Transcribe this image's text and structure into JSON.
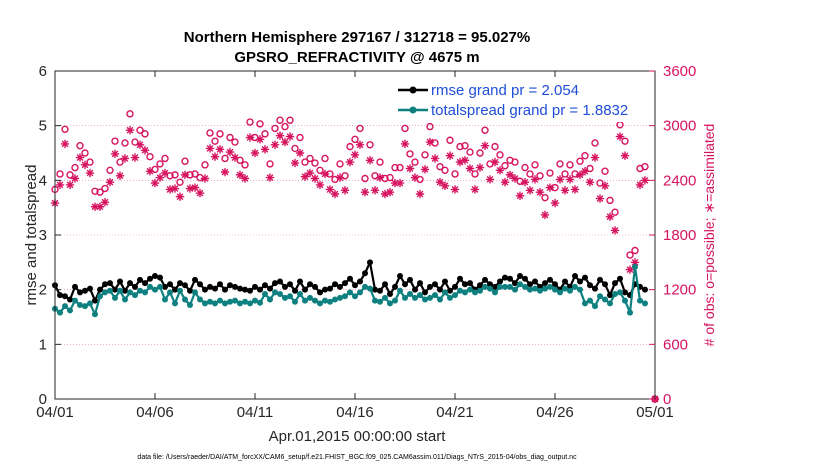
{
  "chart_data": {
    "type": "line",
    "title": "Northern Hemisphere 297167 / 312718 = 95.027%",
    "subtitle": "GPSRO_REFRACTIVITY @ 4675 m",
    "xlabel": "Apr.01,2015 00:00:00 start",
    "ylabel": "rmse and totalspread",
    "ylabel_right": "# of obs: o=possible; ∗=assimilated",
    "footer": "data file: /Users/raeder/DAI/ATM_forcXX/CAM6_setup/f.e21.FHIST_BGC.f09_025.CAM6assim.011/Diags_NTrS_2015-04/obs_diag_output.nc",
    "xlim": [
      0,
      30
    ],
    "ylim": [
      0,
      6
    ],
    "ylim_right": [
      0,
      3600
    ],
    "x_tick_labels": [
      "04/01",
      "04/06",
      "04/11",
      "04/16",
      "04/21",
      "04/26",
      "05/01"
    ],
    "y_tick_labels": [
      "0",
      "1",
      "2",
      "3",
      "4",
      "5",
      "6"
    ],
    "y_right_tick_labels": [
      "0",
      "600",
      "1200",
      "1800",
      "2400",
      "3000",
      "3600"
    ],
    "colors": {
      "rmse": "#000000",
      "totalspread": "#0e8080",
      "obs": "#d6135f",
      "legend_text": "#1f4fd8"
    },
    "legend": {
      "position": "top-right",
      "entries": [
        "rmse grand pr = 2.054",
        "totalspread grand pr = 1.8832"
      ]
    },
    "series": [
      {
        "name": "rmse",
        "axis": "left",
        "marker": "circle-line",
        "x": [
          0.0,
          0.25,
          0.5,
          0.75,
          1.0,
          1.25,
          1.5,
          1.75,
          2.0,
          2.25,
          2.5,
          2.75,
          3.0,
          3.25,
          3.5,
          3.75,
          4.0,
          4.25,
          4.5,
          4.75,
          5.0,
          5.25,
          5.5,
          5.75,
          6.0,
          6.25,
          6.5,
          6.75,
          7.0,
          7.25,
          7.5,
          7.75,
          8.0,
          8.25,
          8.5,
          8.75,
          9.0,
          9.25,
          9.5,
          9.75,
          10.0,
          10.25,
          10.5,
          10.75,
          11.0,
          11.25,
          11.5,
          11.75,
          12.0,
          12.25,
          12.5,
          12.75,
          13.0,
          13.25,
          13.5,
          13.75,
          14.0,
          14.25,
          14.5,
          14.75,
          15.0,
          15.25,
          15.5,
          15.75,
          16.0,
          16.25,
          16.5,
          16.75,
          17.0,
          17.25,
          17.5,
          17.75,
          18.0,
          18.25,
          18.5,
          18.75,
          19.0,
          19.25,
          19.5,
          19.75,
          20.0,
          20.25,
          20.5,
          20.75,
          21.0,
          21.25,
          21.5,
          21.75,
          22.0,
          22.25,
          22.5,
          22.75,
          23.0,
          23.25,
          23.5,
          23.75,
          24.0,
          24.25,
          24.5,
          24.75,
          25.0,
          25.25,
          25.5,
          25.75,
          26.0,
          26.25,
          26.5,
          26.75,
          27.0,
          27.25,
          27.5,
          27.75,
          28.0,
          28.25,
          28.5,
          28.75,
          29.0,
          29.25,
          29.5
        ],
        "values": [
          2.08,
          1.9,
          1.88,
          1.82,
          2.05,
          1.95,
          1.98,
          2.02,
          1.8,
          2.0,
          2.1,
          2.12,
          2.0,
          2.15,
          1.98,
          2.12,
          2.05,
          2.18,
          2.12,
          2.2,
          2.25,
          2.22,
          2.05,
          2.1,
          2.0,
          2.12,
          2.08,
          1.98,
          2.18,
          2.1,
          2.0,
          2.05,
          2.02,
          2.1,
          2.0,
          2.08,
          2.05,
          2.02,
          2.0,
          1.98,
          2.05,
          2.0,
          2.08,
          2.02,
          2.12,
          2.15,
          2.05,
          2.1,
          1.98,
          2.15,
          2.0,
          2.1,
          2.05,
          1.95,
          2.0,
          2.02,
          2.1,
          2.05,
          2.12,
          2.2,
          2.08,
          2.15,
          2.3,
          2.5,
          2.0,
          1.98,
          2.1,
          1.92,
          2.05,
          2.25,
          2.1,
          2.18,
          2.0,
          2.12,
          1.95,
          2.05,
          2.1,
          2.0,
          2.15,
          1.98,
          2.05,
          2.2,
          2.1,
          2.12,
          2.0,
          2.08,
          2.18,
          2.1,
          2.05,
          2.15,
          2.22,
          2.2,
          2.12,
          2.25,
          2.2,
          2.1,
          2.15,
          2.05,
          2.12,
          2.18,
          2.1,
          2.0,
          2.15,
          2.05,
          2.25,
          2.15,
          2.22,
          2.08,
          2.02,
          2.18,
          2.1,
          1.9,
          2.12,
          2.2,
          1.95,
          1.9,
          2.1,
          2.05,
          2.0
        ],
        "y_tick_count_note": "values in data units"
      },
      {
        "name": "totalspread",
        "axis": "left",
        "marker": "circle-line",
        "x": [
          0.0,
          0.25,
          0.5,
          0.75,
          1.0,
          1.25,
          1.5,
          1.75,
          2.0,
          2.25,
          2.5,
          2.75,
          3.0,
          3.25,
          3.5,
          3.75,
          4.0,
          4.25,
          4.5,
          4.75,
          5.0,
          5.25,
          5.5,
          5.75,
          6.0,
          6.25,
          6.5,
          6.75,
          7.0,
          7.25,
          7.5,
          7.75,
          8.0,
          8.25,
          8.5,
          8.75,
          9.0,
          9.25,
          9.5,
          9.75,
          10.0,
          10.25,
          10.5,
          10.75,
          11.0,
          11.25,
          11.5,
          11.75,
          12.0,
          12.25,
          12.5,
          12.75,
          13.0,
          13.25,
          13.5,
          13.75,
          14.0,
          14.25,
          14.5,
          14.75,
          15.0,
          15.25,
          15.5,
          15.75,
          16.0,
          16.25,
          16.5,
          16.75,
          17.0,
          17.25,
          17.5,
          17.75,
          18.0,
          18.25,
          18.5,
          18.75,
          19.0,
          19.25,
          19.5,
          19.75,
          20.0,
          20.25,
          20.5,
          20.75,
          21.0,
          21.25,
          21.5,
          21.75,
          22.0,
          22.25,
          22.5,
          22.75,
          23.0,
          23.25,
          23.5,
          23.75,
          24.0,
          24.25,
          24.5,
          24.75,
          25.0,
          25.25,
          25.5,
          25.75,
          26.0,
          26.25,
          26.5,
          26.75,
          27.0,
          27.25,
          27.5,
          27.75,
          28.0,
          28.25,
          28.5,
          28.75,
          29.0,
          29.25,
          29.5
        ],
        "values": [
          1.65,
          1.58,
          1.7,
          1.62,
          1.8,
          1.72,
          1.7,
          1.75,
          1.55,
          1.88,
          1.95,
          1.98,
          1.85,
          1.98,
          1.82,
          1.95,
          1.9,
          1.98,
          1.95,
          2.05,
          2.0,
          2.05,
          1.82,
          1.95,
          1.75,
          1.98,
          1.82,
          1.72,
          1.95,
          1.82,
          1.75,
          1.78,
          1.75,
          1.8,
          1.75,
          1.78,
          1.8,
          1.75,
          1.78,
          1.75,
          1.8,
          1.76,
          1.92,
          1.82,
          1.95,
          1.92,
          1.85,
          1.88,
          1.78,
          1.92,
          1.8,
          1.85,
          1.8,
          1.75,
          1.8,
          1.78,
          1.82,
          1.85,
          1.88,
          1.95,
          1.88,
          1.95,
          2.05,
          2.02,
          1.8,
          1.78,
          1.85,
          1.75,
          1.8,
          1.98,
          1.85,
          1.92,
          1.85,
          1.9,
          1.82,
          1.85,
          1.9,
          1.82,
          1.95,
          1.85,
          1.9,
          1.98,
          1.95,
          2.0,
          1.95,
          1.98,
          2.05,
          2.02,
          1.95,
          2.05,
          2.05,
          2.05,
          2.0,
          2.1,
          2.05,
          2.0,
          2.02,
          1.98,
          2.02,
          2.05,
          2.0,
          1.95,
          2.02,
          1.98,
          2.05,
          2.0,
          1.75,
          1.8,
          1.7,
          1.88,
          1.82,
          1.75,
          1.92,
          1.95,
          1.8,
          1.58,
          2.42,
          1.8,
          1.75
        ]
      },
      {
        "name": "obs possible",
        "axis": "right",
        "marker": "circle-open",
        "x": [
          0.0,
          0.25,
          0.5,
          0.75,
          1.0,
          1.25,
          1.5,
          1.75,
          2.0,
          2.25,
          2.5,
          2.75,
          3.0,
          3.25,
          3.5,
          3.75,
          4.0,
          4.25,
          4.5,
          4.75,
          5.0,
          5.25,
          5.5,
          5.75,
          6.0,
          6.25,
          6.5,
          6.75,
          7.0,
          7.25,
          7.5,
          7.75,
          8.0,
          8.25,
          8.5,
          8.75,
          9.0,
          9.25,
          9.5,
          9.75,
          10.0,
          10.25,
          10.5,
          10.75,
          11.0,
          11.25,
          11.5,
          11.75,
          12.0,
          12.25,
          12.5,
          12.75,
          13.0,
          13.25,
          13.5,
          13.75,
          14.0,
          14.25,
          14.5,
          14.75,
          15.0,
          15.25,
          15.5,
          15.75,
          16.0,
          16.25,
          16.5,
          16.75,
          17.0,
          17.25,
          17.5,
          17.75,
          18.0,
          18.25,
          18.5,
          18.75,
          19.0,
          19.25,
          19.5,
          19.75,
          20.0,
          20.25,
          20.5,
          20.75,
          21.0,
          21.25,
          21.5,
          21.75,
          22.0,
          22.25,
          22.5,
          22.75,
          23.0,
          23.25,
          23.5,
          23.75,
          24.0,
          24.25,
          24.5,
          24.75,
          25.0,
          25.25,
          25.5,
          25.75,
          26.0,
          26.25,
          26.5,
          26.75,
          27.0,
          27.25,
          27.5,
          27.75,
          28.0,
          28.25,
          28.5,
          28.75,
          29.0,
          29.25,
          29.5,
          30.0
        ],
        "values": [
          2300,
          2470,
          2960,
          2460,
          2540,
          2780,
          2700,
          2600,
          2280,
          2270,
          2310,
          2510,
          2830,
          2600,
          2810,
          3130,
          2820,
          2950,
          2910,
          2660,
          2520,
          2580,
          2640,
          2450,
          2460,
          2380,
          2610,
          2460,
          2470,
          2430,
          2570,
          2920,
          2830,
          2910,
          2640,
          2870,
          2820,
          2620,
          2570,
          3040,
          2870,
          3020,
          2910,
          2580,
          2970,
          3060,
          2990,
          3060,
          2750,
          2870,
          2600,
          2640,
          2590,
          2510,
          2640,
          2470,
          2410,
          2580,
          2450,
          2770,
          2850,
          2970,
          2420,
          2790,
          2450,
          2600,
          2420,
          2430,
          2540,
          2540,
          2970,
          2690,
          2600,
          2410,
          2680,
          2990,
          2810,
          2550,
          2510,
          2840,
          2470,
          2770,
          2780,
          2710,
          2470,
          2700,
          2950,
          2580,
          2770,
          2680,
          2560,
          2620,
          2600,
          2390,
          2540,
          2470,
          2570,
          2450,
          2210,
          2480,
          2320,
          2580,
          2470,
          2570,
          2470,
          2610,
          2670,
          2530,
          2810,
          2370,
          2500,
          2180,
          2050,
          3010,
          2830,
          1580,
          1630,
          2530,
          2550,
          0
        ]
      },
      {
        "name": "obs assimilated",
        "axis": "right",
        "marker": "asterisk",
        "x": [
          0.0,
          0.25,
          0.5,
          0.75,
          1.0,
          1.25,
          1.5,
          1.75,
          2.0,
          2.25,
          2.5,
          2.75,
          3.0,
          3.25,
          3.5,
          3.75,
          4.0,
          4.25,
          4.5,
          4.75,
          5.0,
          5.25,
          5.5,
          5.75,
          6.0,
          6.25,
          6.5,
          6.75,
          7.0,
          7.25,
          7.5,
          7.75,
          8.0,
          8.25,
          8.5,
          8.75,
          9.0,
          9.25,
          9.5,
          9.75,
          10.0,
          10.25,
          10.5,
          10.75,
          11.0,
          11.25,
          11.5,
          11.75,
          12.0,
          12.25,
          12.5,
          12.75,
          13.0,
          13.25,
          13.5,
          13.75,
          14.0,
          14.25,
          14.5,
          14.75,
          15.0,
          15.25,
          15.5,
          15.75,
          16.0,
          16.25,
          16.5,
          16.75,
          17.0,
          17.25,
          17.5,
          17.75,
          18.0,
          18.25,
          18.5,
          18.75,
          19.0,
          19.25,
          19.5,
          19.75,
          20.0,
          20.25,
          20.5,
          20.75,
          21.0,
          21.25,
          21.5,
          21.75,
          22.0,
          22.25,
          22.5,
          22.75,
          23.0,
          23.25,
          23.5,
          23.75,
          24.0,
          24.25,
          24.5,
          24.75,
          25.0,
          25.25,
          25.5,
          25.75,
          26.0,
          26.25,
          26.5,
          26.75,
          27.0,
          27.25,
          27.5,
          27.75,
          28.0,
          28.25,
          28.5,
          28.75,
          29.0,
          29.25,
          29.5,
          30.0
        ],
        "values": [
          2150,
          2350,
          2800,
          2350,
          2420,
          2650,
          2570,
          2480,
          2110,
          2110,
          2160,
          2380,
          2690,
          2450,
          2640,
          2950,
          2650,
          2790,
          2730,
          2500,
          2370,
          2430,
          2480,
          2300,
          2310,
          2220,
          2460,
          2310,
          2320,
          2260,
          2420,
          2750,
          2660,
          2740,
          2490,
          2710,
          2650,
          2460,
          2420,
          2870,
          2700,
          2850,
          2740,
          2430,
          2790,
          2890,
          2820,
          2880,
          2590,
          2700,
          2440,
          2480,
          2420,
          2350,
          2470,
          2300,
          2250,
          2430,
          2290,
          2600,
          2680,
          2790,
          2270,
          2620,
          2290,
          2430,
          2250,
          2270,
          2370,
          2370,
          2800,
          2530,
          2430,
          2250,
          2520,
          2820,
          2640,
          2380,
          2340,
          2670,
          2300,
          2600,
          2620,
          2530,
          2300,
          2540,
          2780,
          2410,
          2600,
          2510,
          2380,
          2460,
          2420,
          2230,
          2380,
          2290,
          2410,
          2270,
          2020,
          2320,
          2150,
          2410,
          2290,
          2410,
          2300,
          2460,
          2500,
          2380,
          2650,
          2200,
          2340,
          2000,
          1850,
          2880,
          2670,
          1420,
          1500,
          2350,
          2400,
          0
        ]
      }
    ]
  }
}
